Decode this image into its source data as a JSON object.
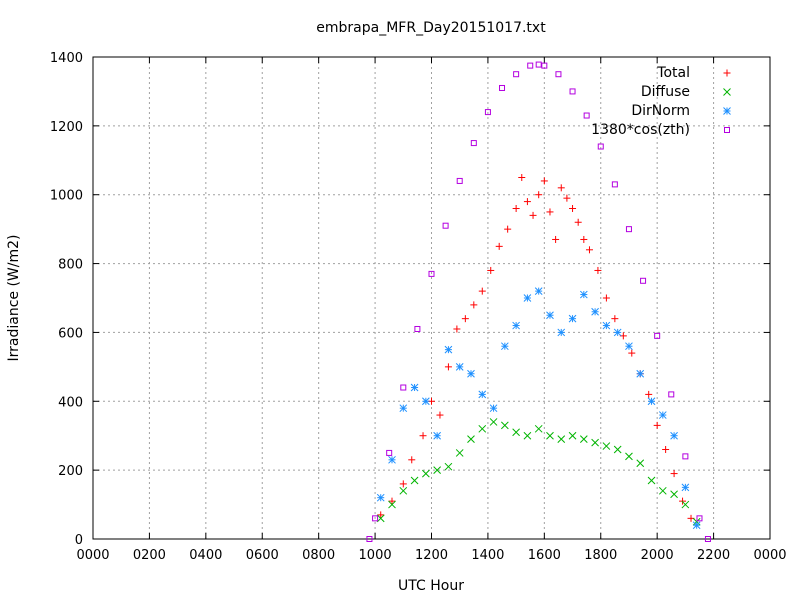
{
  "chart_data": {
    "type": "scatter",
    "title": "embrapa_MFR_Day20151017.txt",
    "xlabel": "UTC Hour",
    "ylabel": "Irradiance (W/m2)",
    "xlim": [
      0,
      24
    ],
    "ylim": [
      0,
      1400
    ],
    "x_ticks": [
      0,
      2,
      4,
      6,
      8,
      10,
      12,
      14,
      16,
      18,
      20,
      22,
      24
    ],
    "x_tick_labels": [
      "0000",
      "0200",
      "0400",
      "0600",
      "0800",
      "1000",
      "1200",
      "1400",
      "1600",
      "1800",
      "2000",
      "2200",
      "0000"
    ],
    "y_ticks": [
      0,
      200,
      400,
      600,
      800,
      1000,
      1200,
      1400
    ],
    "y_tick_labels": [
      "0",
      "200",
      "400",
      "600",
      "800",
      "1000",
      "1200",
      "1400"
    ],
    "grid": true,
    "legend_position": "top-right",
    "colors": {
      "Total": "#ff0000",
      "Diffuse": "#00b400",
      "DirNorm": "#1e90ff",
      "1380*cos(zth)": "#b400e0"
    },
    "series": [
      {
        "name": "Total",
        "marker": "plus",
        "x": [
          10.2,
          10.6,
          11.0,
          11.3,
          11.7,
          12.0,
          12.3,
          12.6,
          12.9,
          13.2,
          13.5,
          13.8,
          14.1,
          14.4,
          14.7,
          15.0,
          15.2,
          15.4,
          15.6,
          15.8,
          16.0,
          16.2,
          16.4,
          16.6,
          16.8,
          17.0,
          17.2,
          17.4,
          17.6,
          17.9,
          18.2,
          18.5,
          18.8,
          19.1,
          19.4,
          19.7,
          20.0,
          20.3,
          20.6,
          20.9,
          21.2
        ],
        "y": [
          70,
          110,
          160,
          230,
          300,
          400,
          360,
          500,
          610,
          640,
          680,
          720,
          780,
          850,
          900,
          960,
          1050,
          980,
          940,
          1000,
          1040,
          950,
          870,
          1020,
          990,
          960,
          920,
          870,
          840,
          780,
          700,
          640,
          590,
          540,
          480,
          420,
          330,
          260,
          190,
          110,
          60
        ]
      },
      {
        "name": "Diffuse",
        "marker": "cross",
        "x": [
          10.2,
          10.6,
          11.0,
          11.4,
          11.8,
          12.2,
          12.6,
          13.0,
          13.4,
          13.8,
          14.2,
          14.6,
          15.0,
          15.4,
          15.8,
          16.2,
          16.6,
          17.0,
          17.4,
          17.8,
          18.2,
          18.6,
          19.0,
          19.4,
          19.8,
          20.2,
          20.6,
          21.0,
          21.4
        ],
        "y": [
          60,
          100,
          140,
          170,
          190,
          200,
          210,
          250,
          290,
          320,
          340,
          330,
          310,
          300,
          320,
          300,
          290,
          300,
          290,
          280,
          270,
          260,
          240,
          220,
          170,
          140,
          130,
          100,
          50
        ]
      },
      {
        "name": "DirNorm",
        "marker": "star",
        "x": [
          10.2,
          10.6,
          11.0,
          11.4,
          11.8,
          12.2,
          12.6,
          13.0,
          13.4,
          13.8,
          14.2,
          14.6,
          15.0,
          15.4,
          15.8,
          16.2,
          16.6,
          17.0,
          17.4,
          17.8,
          18.2,
          18.6,
          19.0,
          19.4,
          19.8,
          20.2,
          20.6,
          21.0,
          21.4
        ],
        "y": [
          120,
          230,
          380,
          440,
          400,
          300,
          550,
          500,
          480,
          420,
          380,
          560,
          620,
          700,
          720,
          650,
          600,
          640,
          710,
          660,
          620,
          600,
          560,
          480,
          400,
          360,
          300,
          150,
          40
        ]
      },
      {
        "name": "1380*cos(zth)",
        "marker": "square",
        "x": [
          9.8,
          10.0,
          10.5,
          11.0,
          11.5,
          12.0,
          12.5,
          13.0,
          13.5,
          14.0,
          14.5,
          15.0,
          15.5,
          15.8,
          16.0,
          16.5,
          17.0,
          17.5,
          18.0,
          18.5,
          19.0,
          19.5,
          20.0,
          20.5,
          21.0,
          21.5,
          21.8
        ],
        "y": [
          0,
          60,
          250,
          440,
          610,
          770,
          910,
          1040,
          1150,
          1240,
          1310,
          1350,
          1375,
          1378,
          1375,
          1350,
          1300,
          1230,
          1140,
          1030,
          900,
          750,
          590,
          420,
          240,
          60,
          0
        ]
      }
    ]
  }
}
